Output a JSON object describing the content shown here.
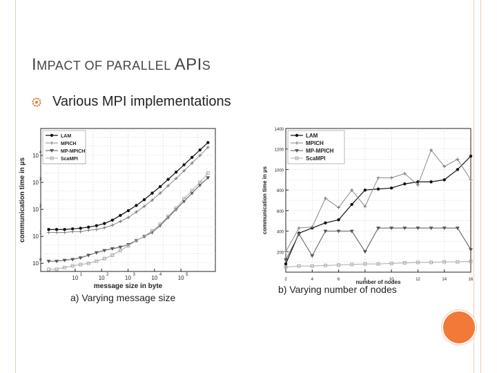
{
  "slide": {
    "title_first": "I",
    "title_mid": "MPACT OF PARALLEL ",
    "title_big": "API",
    "title_last": "S",
    "bullet": "Various MPI implementations"
  },
  "legend_names": [
    "LAM",
    "MPICH",
    "MP-MPICH",
    "ScaMPI"
  ],
  "chart_data": [
    {
      "type": "line",
      "caption": "a) Varying message size",
      "xlabel": "message size in byte",
      "ylabel": "communication time in µs",
      "xscale": "log",
      "yscale": "log",
      "xlim": [
        0.5,
        2000000
      ],
      "ylim": [
        0.5,
        100000
      ],
      "xticks": [
        {
          "v": 10,
          "t": "10"
        },
        {
          "v": 100,
          "t": "10"
        },
        {
          "v": 1000,
          "t": "10"
        },
        {
          "v": 10000,
          "t": "10"
        },
        {
          "v": 100000,
          "t": "10"
        }
      ],
      "xtick_exp": [
        "1",
        "2",
        "3",
        "4",
        "5"
      ],
      "yticks": [
        {
          "v": 1,
          "t": "10"
        },
        {
          "v": 10,
          "t": "10"
        },
        {
          "v": 100,
          "t": "10"
        },
        {
          "v": 1000,
          "t": "10"
        },
        {
          "v": 10000,
          "t": "10"
        }
      ],
      "ytick_exp": [
        "0",
        "1",
        "2",
        "3",
        "4"
      ],
      "legend": [
        "LAM",
        "MPICH",
        "MP-MPICH",
        "ScaMPI"
      ],
      "x": [
        1,
        2,
        4,
        8,
        16,
        32,
        64,
        128,
        256,
        512,
        1024,
        2048,
        4096,
        8192,
        16384,
        32768,
        65536,
        131072,
        262144,
        524288,
        1048576
      ],
      "series": [
        {
          "name": "LAM",
          "values": [
            18,
            18,
            18,
            19,
            20,
            22,
            25,
            30,
            40,
            60,
            90,
            140,
            230,
            400,
            700,
            1300,
            2400,
            4500,
            8500,
            16000,
            30000
          ]
        },
        {
          "name": "MPICH",
          "values": [
            14,
            14,
            14,
            15,
            15,
            17,
            18,
            21,
            26,
            36,
            50,
            80,
            130,
            220,
            400,
            750,
            1400,
            2700,
            5200,
            10000,
            20000
          ]
        },
        {
          "name": "MP-MPICH",
          "values": [
            1.2,
            1.2,
            1.3,
            1.4,
            1.6,
            2.0,
            2.5,
            3.0,
            3.5,
            4.0,
            5.0,
            7.0,
            10,
            14,
            25,
            50,
            100,
            200,
            400,
            800,
            1500
          ]
        },
        {
          "name": "ScaMPI",
          "values": [
            0.6,
            0.6,
            0.7,
            0.8,
            0.9,
            1.0,
            1.2,
            1.5,
            2.0,
            3.0,
            4.5,
            7.0,
            10,
            16,
            28,
            55,
            110,
            250,
            500,
            1000,
            2200
          ]
        }
      ]
    },
    {
      "type": "line",
      "caption": "b) Varying number of nodes",
      "xlabel": "number of nodes",
      "ylabel": "communication time in µs",
      "xlim": [
        2,
        16
      ],
      "ylim": [
        0,
        1400
      ],
      "xticks": [
        2,
        4,
        6,
        8,
        10,
        12,
        14,
        16
      ],
      "yticks": [
        200,
        400,
        600,
        800,
        1000,
        1200,
        1400
      ],
      "legend": [
        "LAM",
        "MPICH",
        "MP-MPICH",
        "ScaMPI"
      ],
      "x": [
        2,
        3,
        4,
        5,
        6,
        7,
        8,
        9,
        10,
        11,
        12,
        13,
        14,
        15,
        16
      ],
      "series": [
        {
          "name": "LAM",
          "values": [
            80,
            380,
            430,
            480,
            510,
            660,
            800,
            810,
            820,
            860,
            880,
            880,
            900,
            1000,
            1130
          ]
        },
        {
          "name": "MPICH",
          "values": [
            200,
            430,
            440,
            720,
            630,
            800,
            640,
            920,
            920,
            960,
            850,
            1190,
            1030,
            1100,
            900
          ]
        },
        {
          "name": "MP-MPICH",
          "values": [
            120,
            370,
            160,
            400,
            400,
            400,
            200,
            430,
            430,
            430,
            430,
            430,
            430,
            430,
            220
          ]
        },
        {
          "name": "ScaMPI",
          "values": [
            50,
            60,
            60,
            65,
            70,
            75,
            80,
            80,
            85,
            90,
            95,
            95,
            100,
            100,
            105
          ]
        }
      ]
    }
  ]
}
